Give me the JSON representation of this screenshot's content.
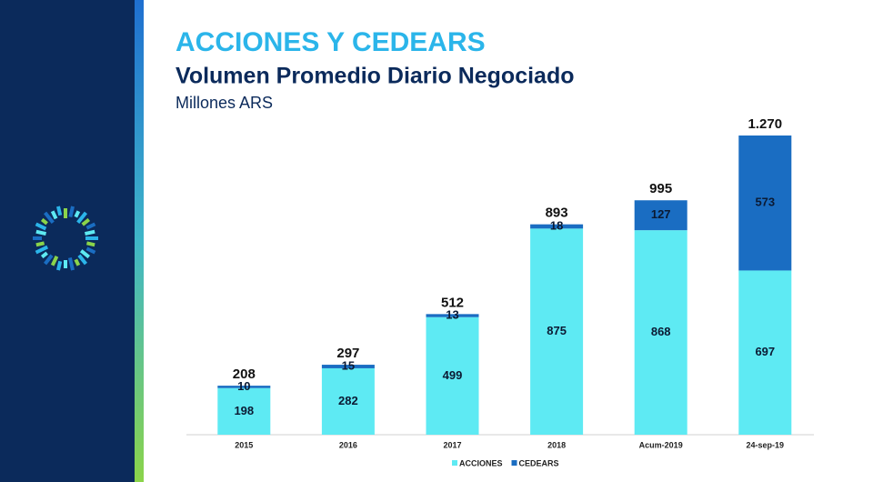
{
  "chart_data": {
    "type": "stacked-bar",
    "title": "ACCIONES Y CEDEARS",
    "subtitle": "Volumen Promedio Diario Negociado",
    "unit_label": "Millones ARS",
    "categories": [
      "2015",
      "2016",
      "2017",
      "2018",
      "Acum-2019",
      "24-sep-19"
    ],
    "series": [
      {
        "name": "ACCIONES",
        "color": "#5eeaf3",
        "values": [
          198,
          282,
          499,
          875,
          868,
          697
        ]
      },
      {
        "name": "CEDEARS",
        "color": "#1a6dc2",
        "values": [
          10,
          15,
          13,
          18,
          127,
          573
        ]
      }
    ],
    "totals": {
      "values": [
        208,
        297,
        512,
        893,
        995,
        1270
      ],
      "value_labels": [
        "208",
        "297",
        "512",
        "893",
        "995",
        "1.270"
      ]
    },
    "legend": "bottom"
  }
}
